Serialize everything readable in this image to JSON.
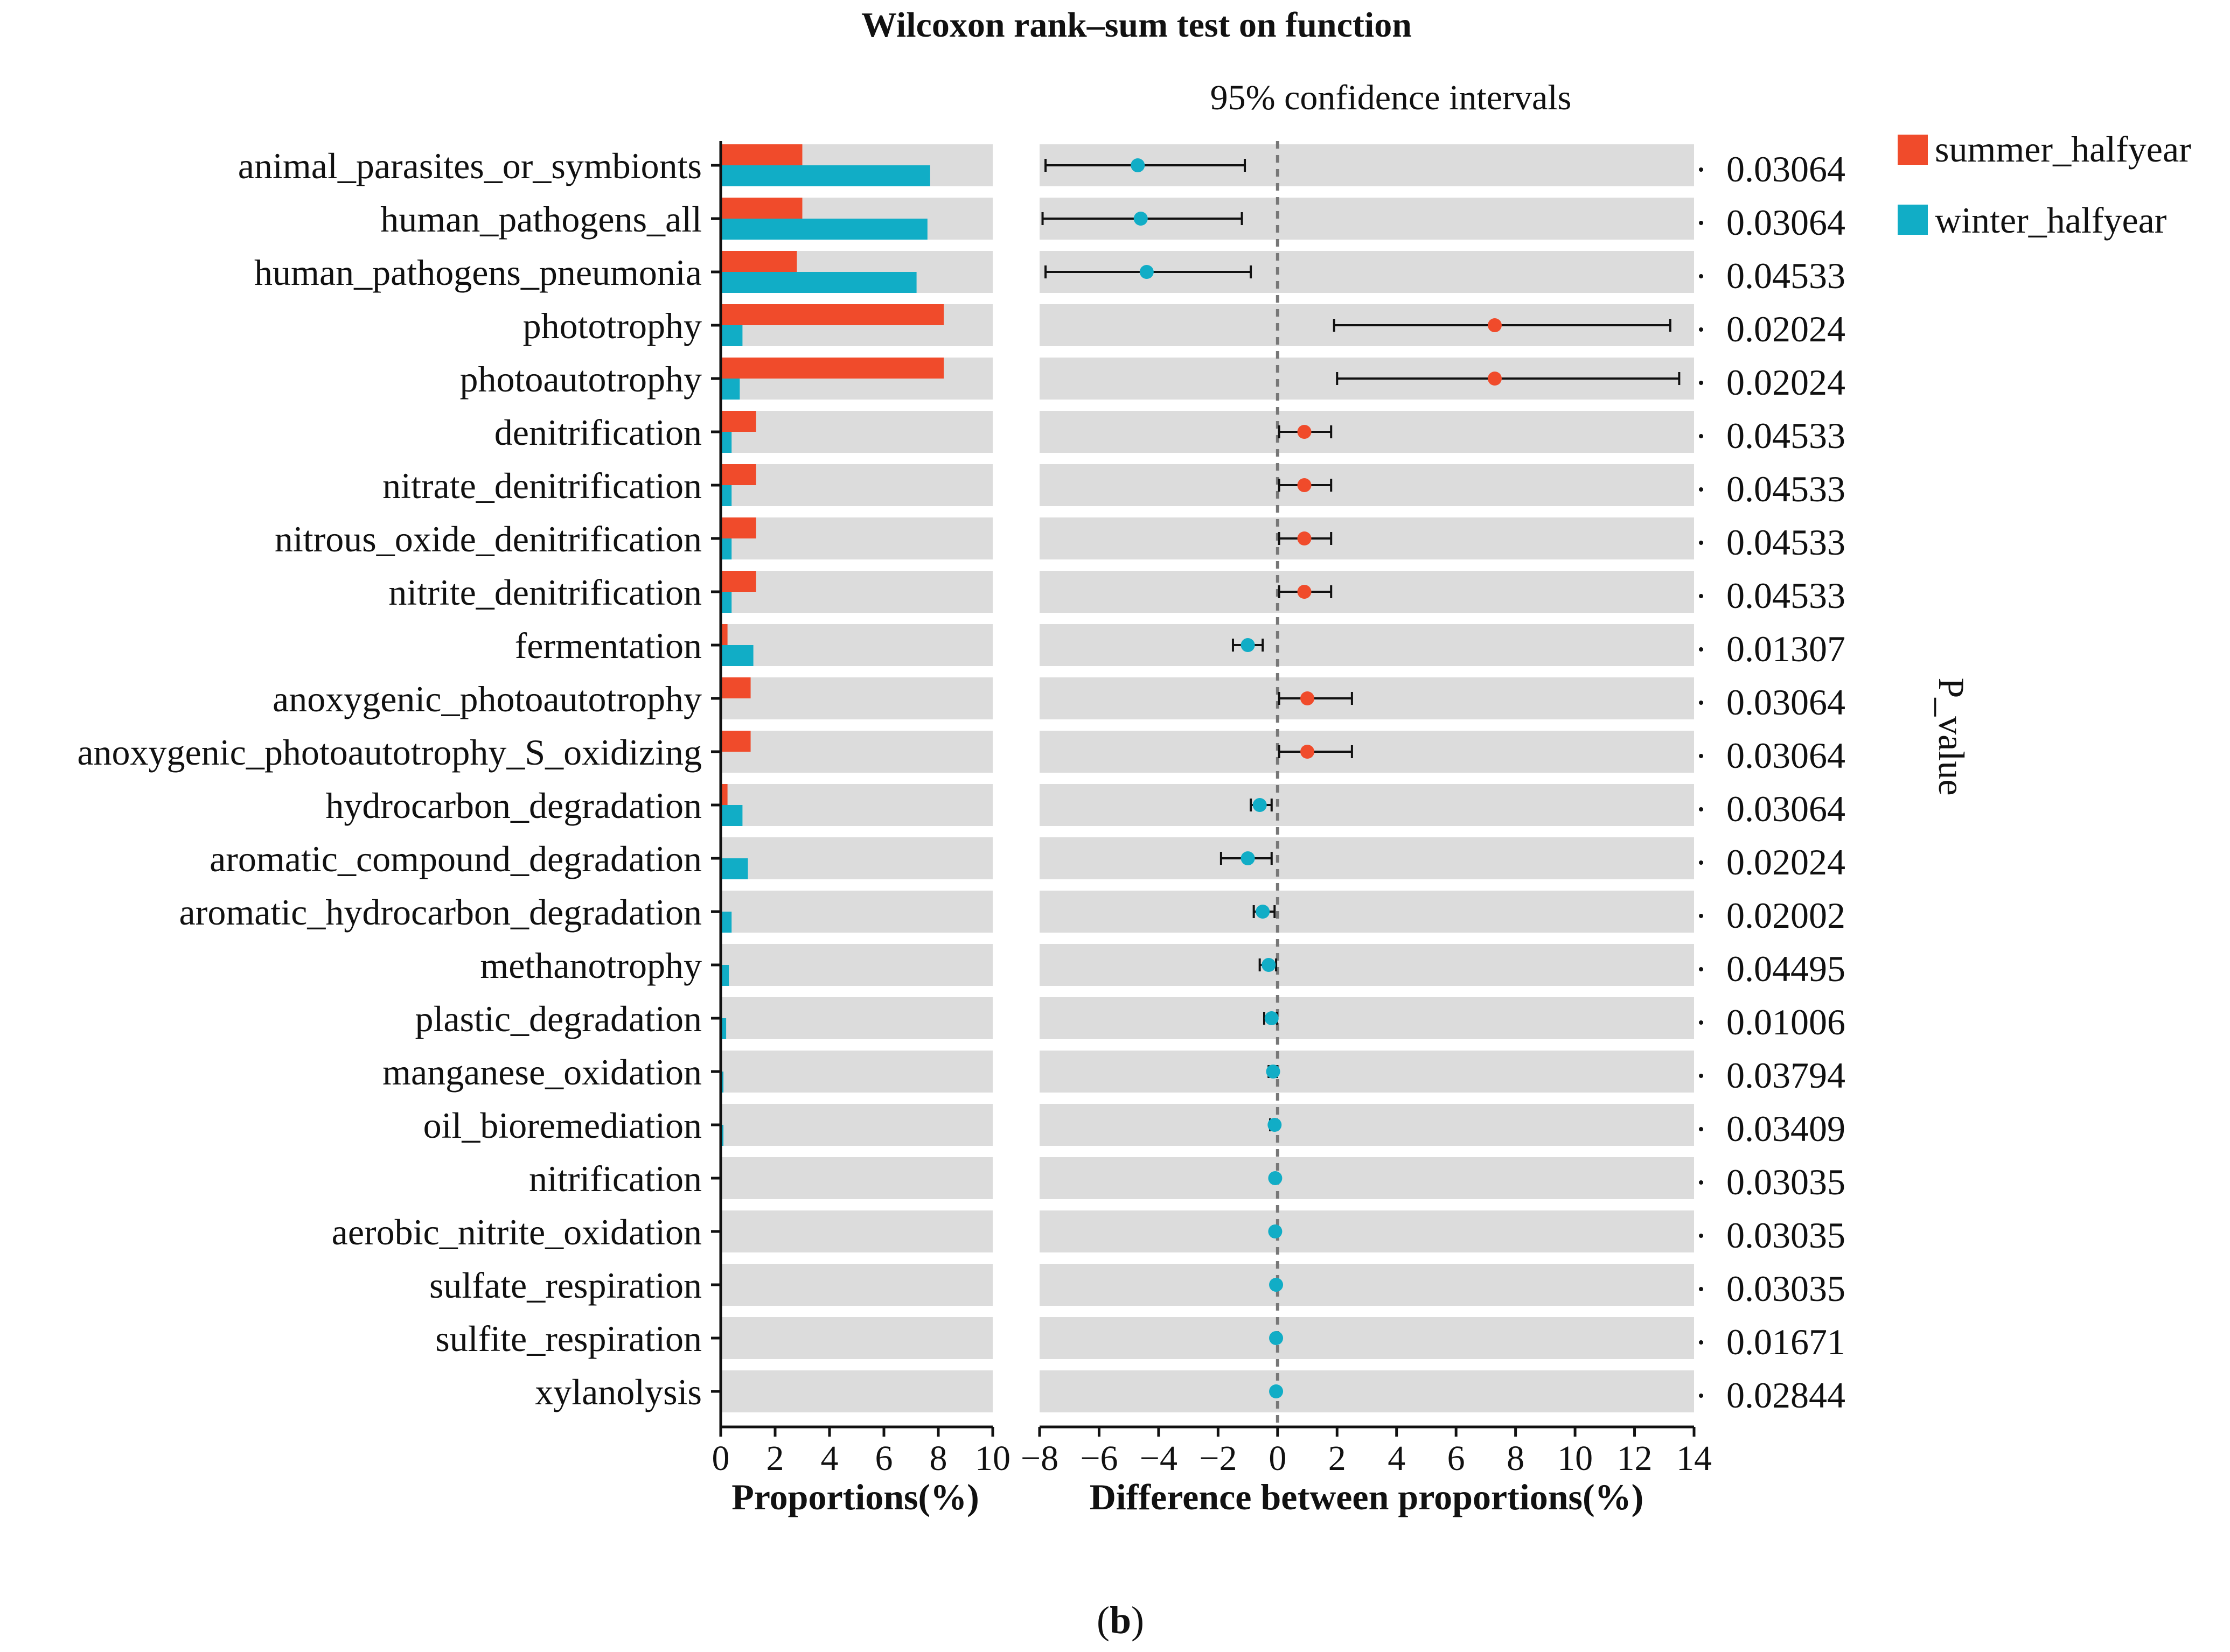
{
  "chart_data": {
    "type": "bar",
    "title": "Wilcoxon rank–sum test on function",
    "ci_title": "95% confidence intervals",
    "caption": {
      "open": "(",
      "letter": "b",
      "close": ")"
    },
    "pvalue_label": "P_value",
    "left_panel": {
      "xlabel": "Proportions(%)",
      "xlim": [
        0,
        10
      ],
      "ticks": [
        0,
        2,
        4,
        6,
        8,
        10
      ]
    },
    "right_panel": {
      "xlabel": "Difference between proportions(%)",
      "xlim": [
        -8,
        14
      ],
      "ticks": [
        -8,
        -6,
        -4,
        -2,
        0,
        2,
        4,
        6,
        8,
        10,
        12,
        14
      ],
      "tick_labels": [
        "−8",
        "−6",
        "−4",
        "−2",
        "0",
        "2",
        "4",
        "6",
        "8",
        "10",
        "12",
        "14"
      ]
    },
    "colors": {
      "summer": "#f04b2b",
      "winter": "#11adc6",
      "panel_bg": "#dcdcdc"
    },
    "legend": [
      {
        "name": "summer_halfyear",
        "color": "#f04b2b"
      },
      {
        "name": "winter_halfyear",
        "color": "#11adc6"
      }
    ],
    "categories": [
      "animal_parasites_or_symbionts",
      "human_pathogens_all",
      "human_pathogens_pneumonia",
      "phototrophy",
      "photoautotrophy",
      "denitrification",
      "nitrate_denitrification",
      "nitrous_oxide_denitrification",
      "nitrite_denitrification",
      "fermentation",
      "anoxygenic_photoautotrophy",
      "anoxygenic_photoautotrophy_S_oxidizing",
      "hydrocarbon_degradation",
      "aromatic_compound_degradation",
      "aromatic_hydrocarbon_degradation",
      "methanotrophy",
      "plastic_degradation",
      "manganese_oxidation",
      "oil_bioremediation",
      "nitrification",
      "aerobic_nitrite_oxidation",
      "sulfate_respiration",
      "sulfite_respiration",
      "xylanolysis"
    ],
    "series": [
      {
        "name": "summer_halfyear",
        "values": [
          3.0,
          3.0,
          2.8,
          8.2,
          8.2,
          1.3,
          1.3,
          1.3,
          1.3,
          0.25,
          1.1,
          1.1,
          0.25,
          0.05,
          0.05,
          0.03,
          0.02,
          0.02,
          0.02,
          0.01,
          0.01,
          0.01,
          0.01,
          0.01
        ]
      },
      {
        "name": "winter_halfyear",
        "values": [
          7.7,
          7.6,
          7.2,
          0.8,
          0.7,
          0.4,
          0.4,
          0.4,
          0.4,
          1.2,
          0.0,
          0.0,
          0.8,
          1.0,
          0.4,
          0.3,
          0.2,
          0.1,
          0.1,
          0.05,
          0.05,
          0.03,
          0.03,
          0.03
        ]
      }
    ],
    "difference": [
      {
        "estimate": -4.7,
        "lower": -7.8,
        "upper": -1.1,
        "group": "winter_halfyear"
      },
      {
        "estimate": -4.6,
        "lower": -7.9,
        "upper": -1.2,
        "group": "winter_halfyear"
      },
      {
        "estimate": -4.4,
        "lower": -7.8,
        "upper": -0.9,
        "group": "winter_halfyear"
      },
      {
        "estimate": 7.3,
        "lower": 1.9,
        "upper": 13.2,
        "group": "summer_halfyear"
      },
      {
        "estimate": 7.3,
        "lower": 2.0,
        "upper": 13.5,
        "group": "summer_halfyear"
      },
      {
        "estimate": 0.9,
        "lower": 0.05,
        "upper": 1.8,
        "group": "summer_halfyear"
      },
      {
        "estimate": 0.9,
        "lower": 0.05,
        "upper": 1.8,
        "group": "summer_halfyear"
      },
      {
        "estimate": 0.9,
        "lower": 0.05,
        "upper": 1.8,
        "group": "summer_halfyear"
      },
      {
        "estimate": 0.9,
        "lower": 0.05,
        "upper": 1.8,
        "group": "summer_halfyear"
      },
      {
        "estimate": -1.0,
        "lower": -1.5,
        "upper": -0.5,
        "group": "winter_halfyear"
      },
      {
        "estimate": 1.0,
        "lower": 0.05,
        "upper": 2.5,
        "group": "summer_halfyear"
      },
      {
        "estimate": 1.0,
        "lower": 0.05,
        "upper": 2.5,
        "group": "summer_halfyear"
      },
      {
        "estimate": -0.6,
        "lower": -0.9,
        "upper": -0.2,
        "group": "winter_halfyear"
      },
      {
        "estimate": -1.0,
        "lower": -1.9,
        "upper": -0.2,
        "group": "winter_halfyear"
      },
      {
        "estimate": -0.5,
        "lower": -0.8,
        "upper": -0.1,
        "group": "winter_halfyear"
      },
      {
        "estimate": -0.3,
        "lower": -0.6,
        "upper": -0.05,
        "group": "winter_halfyear"
      },
      {
        "estimate": -0.2,
        "lower": -0.45,
        "upper": -0.02,
        "group": "winter_halfyear"
      },
      {
        "estimate": -0.15,
        "lower": -0.3,
        "upper": -0.02,
        "group": "winter_halfyear"
      },
      {
        "estimate": -0.1,
        "lower": -0.25,
        "upper": -0.02,
        "group": "winter_halfyear"
      },
      {
        "estimate": -0.08,
        "lower": -0.15,
        "upper": -0.02,
        "group": "winter_halfyear"
      },
      {
        "estimate": -0.08,
        "lower": -0.15,
        "upper": -0.02,
        "group": "winter_halfyear"
      },
      {
        "estimate": -0.05,
        "lower": -0.1,
        "upper": -0.01,
        "group": "winter_halfyear"
      },
      {
        "estimate": -0.05,
        "lower": -0.1,
        "upper": -0.01,
        "group": "winter_halfyear"
      },
      {
        "estimate": -0.05,
        "lower": -0.1,
        "upper": -0.01,
        "group": "winter_halfyear"
      }
    ],
    "p_values": [
      "0.03064",
      "0.03064",
      "0.04533",
      "0.02024",
      "0.02024",
      "0.04533",
      "0.04533",
      "0.04533",
      "0.04533",
      "0.01307",
      "0.03064",
      "0.03064",
      "0.03064",
      "0.02024",
      "0.02002",
      "0.04495",
      "0.01006",
      "0.03794",
      "0.03409",
      "0.03035",
      "0.03035",
      "0.03035",
      "0.01671",
      "0.02844"
    ]
  }
}
